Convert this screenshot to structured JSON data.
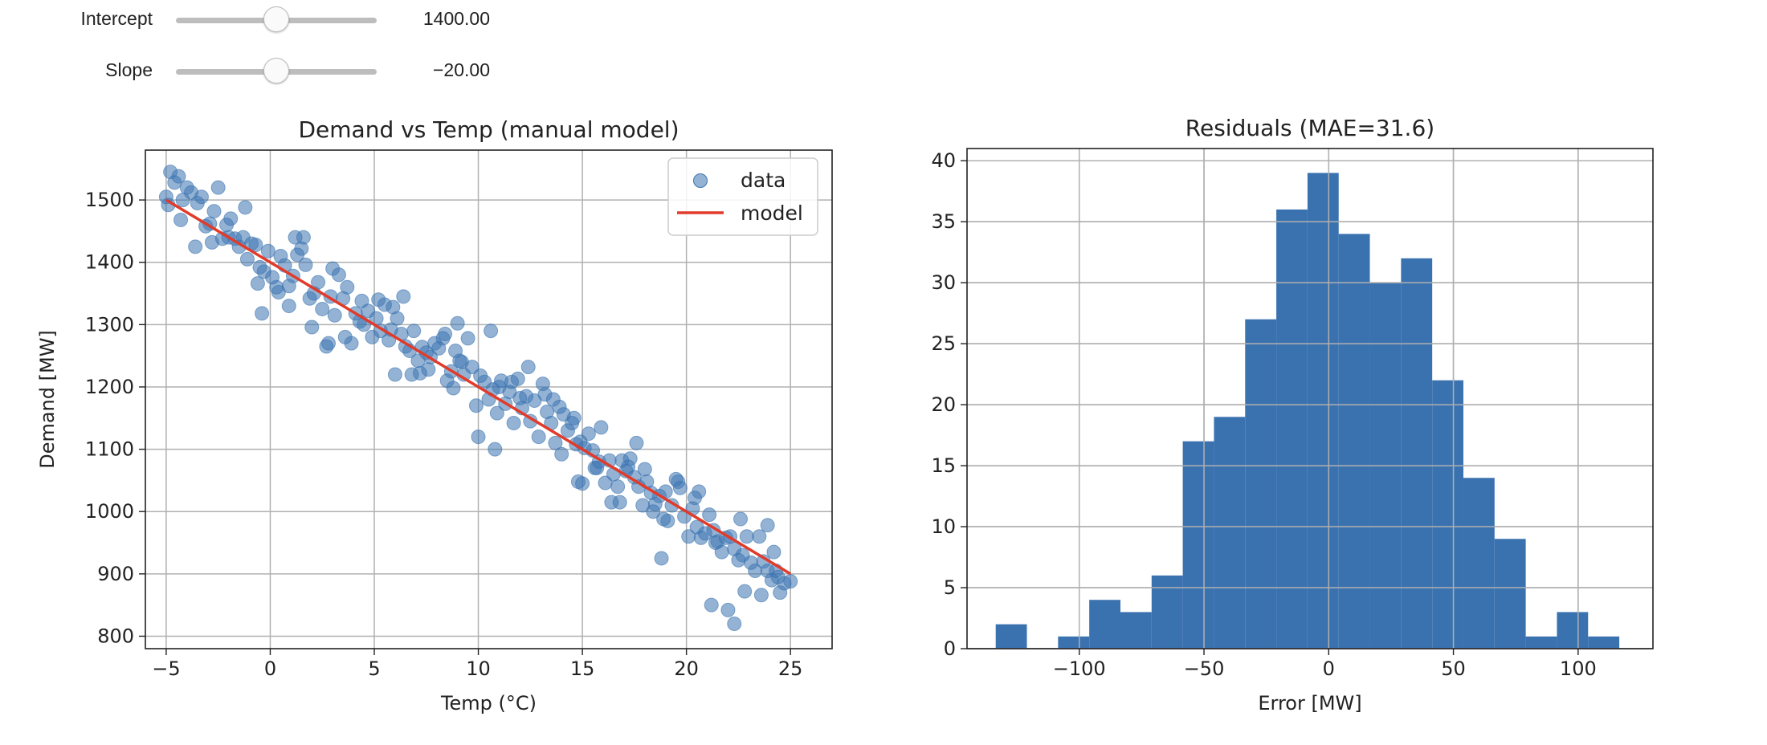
{
  "controls": {
    "intercept": {
      "label": "Intercept",
      "value_text": "1400.00",
      "value": 1400,
      "min": 1000,
      "max": 1800
    },
    "slope": {
      "label": "Slope",
      "value_text": "−20.00",
      "value": -20,
      "min": -40,
      "max": 0
    }
  },
  "colors": {
    "scatter": "#3d74b0",
    "model_line": "#e03b2b",
    "hist": "#3a72b0",
    "grid": "#b0b0b0"
  },
  "chart_data": [
    {
      "type": "scatter",
      "title": "Demand vs Temp (manual model)",
      "xlabel": "Temp (°C)",
      "ylabel": "Demand [MW]",
      "xlim": [
        -6,
        27
      ],
      "ylim": [
        780,
        1580
      ],
      "xticks": [
        -5,
        0,
        5,
        10,
        15,
        20,
        25
      ],
      "xtick_labels": [
        "−5",
        "0",
        "5",
        "10",
        "15",
        "20",
        "25"
      ],
      "yticks": [
        800,
        900,
        1000,
        1100,
        1200,
        1300,
        1400,
        1500
      ],
      "ytick_labels": [
        "800",
        "900",
        "1000",
        "1100",
        "1200",
        "1300",
        "1400",
        "1500"
      ],
      "grid": true,
      "legend": {
        "position": "top-right",
        "entries": [
          "data",
          "model"
        ]
      },
      "series": [
        {
          "name": "data",
          "kind": "scatter",
          "x": [
            -5.0,
            -4.8,
            -4.6,
            -4.4,
            -4.2,
            -4.0,
            -3.8,
            -3.5,
            -3.3,
            -3.1,
            -2.9,
            -2.7,
            -2.5,
            -2.3,
            -2.1,
            -1.9,
            -1.7,
            -1.5,
            -1.3,
            -1.1,
            -0.9,
            -0.7,
            -0.5,
            -0.3,
            -0.1,
            0.1,
            0.3,
            0.5,
            0.7,
            0.9,
            1.1,
            1.3,
            1.5,
            1.7,
            1.9,
            2.1,
            2.3,
            2.5,
            2.7,
            2.9,
            3.1,
            3.3,
            3.5,
            3.7,
            3.9,
            4.1,
            4.3,
            4.5,
            4.7,
            4.9,
            5.1,
            5.3,
            5.5,
            5.7,
            5.9,
            6.1,
            6.3,
            6.5,
            6.7,
            6.9,
            7.1,
            7.3,
            7.5,
            7.7,
            7.9,
            8.1,
            8.3,
            8.5,
            8.7,
            8.9,
            9.1,
            9.3,
            9.5,
            9.7,
            9.9,
            10.1,
            10.3,
            10.5,
            10.7,
            10.9,
            11.1,
            11.3,
            11.5,
            11.7,
            11.9,
            12.1,
            12.3,
            12.5,
            12.7,
            12.9,
            13.1,
            13.3,
            13.5,
            13.7,
            13.9,
            14.1,
            14.3,
            14.5,
            14.7,
            14.9,
            15.1,
            15.3,
            15.5,
            15.7,
            15.9,
            16.1,
            16.3,
            16.5,
            16.7,
            16.9,
            17.1,
            17.3,
            17.5,
            17.7,
            17.9,
            18.1,
            18.3,
            18.5,
            18.7,
            18.9,
            19.1,
            19.3,
            19.5,
            19.7,
            19.9,
            20.1,
            20.3,
            20.5,
            20.7,
            20.9,
            21.1,
            21.3,
            21.5,
            21.7,
            21.9,
            22.1,
            22.3,
            22.5,
            22.7,
            22.9,
            23.1,
            23.3,
            23.5,
            23.7,
            23.9,
            24.1,
            24.3,
            24.5,
            24.7,
            25.0,
            -4.9,
            -4.3,
            -3.6,
            -2.8,
            -2.0,
            -1.2,
            -0.4,
            0.4,
            1.2,
            2.0,
            2.8,
            3.6,
            4.4,
            5.2,
            6.0,
            6.8,
            7.6,
            8.4,
            9.2,
            10.0,
            10.8,
            11.6,
            12.4,
            13.2,
            14.0,
            14.8,
            15.6,
            16.4,
            17.2,
            18.0,
            18.8,
            19.6,
            20.4,
            21.2,
            22.0,
            22.8,
            23.6,
            24.4,
            -0.6,
            0.9,
            3.0,
            5.8,
            7.2,
            9.0,
            10.6,
            12.0,
            13.6,
            14.6,
            15.8,
            17.6,
            19.0,
            20.6,
            21.4,
            22.3,
            23.9,
            1.6,
            6.4,
            8.8,
            11.0,
            15.0,
            16.8,
            18.4,
            22.6,
            24.2
          ],
          "y": [
            1505,
            1545,
            1528,
            1538,
            1500,
            1520,
            1512,
            1495,
            1505,
            1458,
            1462,
            1482,
            1520,
            1438,
            1460,
            1470,
            1438,
            1425,
            1440,
            1405,
            1430,
            1428,
            1392,
            1385,
            1418,
            1376,
            1360,
            1410,
            1395,
            1362,
            1378,
            1412,
            1422,
            1396,
            1342,
            1350,
            1368,
            1325,
            1265,
            1345,
            1315,
            1380,
            1342,
            1360,
            1270,
            1318,
            1305,
            1300,
            1322,
            1280,
            1310,
            1290,
            1332,
            1275,
            1328,
            1310,
            1285,
            1265,
            1258,
            1290,
            1242,
            1264,
            1255,
            1248,
            1270,
            1262,
            1278,
            1210,
            1225,
            1258,
            1242,
            1220,
            1278,
            1232,
            1170,
            1218,
            1208,
            1180,
            1196,
            1158,
            1210,
            1173,
            1192,
            1142,
            1213,
            1166,
            1185,
            1145,
            1178,
            1120,
            1205,
            1160,
            1142,
            1110,
            1168,
            1156,
            1130,
            1142,
            1108,
            1112,
            1102,
            1125,
            1098,
            1070,
            1135,
            1046,
            1082,
            1060,
            1040,
            1082,
            1065,
            1085,
            1055,
            1040,
            1010,
            1048,
            1030,
            1012,
            1025,
            988,
            985,
            1010,
            1052,
            1038,
            992,
            960,
            1005,
            975,
            958,
            965,
            995,
            970,
            952,
            935,
            958,
            960,
            940,
            922,
            930,
            960,
            918,
            905,
            960,
            920,
            905,
            890,
            905,
            870,
            885,
            888,
            1492,
            1468,
            1425,
            1432,
            1440,
            1488,
            1318,
            1352,
            1440,
            1296,
            1270,
            1280,
            1338,
            1340,
            1220,
            1220,
            1228,
            1285,
            1240,
            1120,
            1100,
            1208,
            1232,
            1188,
            1092,
            1048,
            1070,
            1015,
            1072,
            1068,
            925,
            1048,
            1022,
            850,
            842,
            872,
            866,
            895,
            1366,
            1330,
            1390,
            1292,
            1222,
            1302,
            1290,
            1182,
            1180,
            1150,
            1080,
            1110,
            1032,
            1032,
            950,
            820,
            978,
            1440,
            1345,
            1198,
            1200,
            1045,
            1015,
            1000,
            988,
            935
          ]
        },
        {
          "name": "model",
          "kind": "line",
          "x": [
            -5,
            25
          ],
          "y": [
            1500,
            900
          ]
        }
      ]
    },
    {
      "type": "bar",
      "title": "Residuals (MAE=31.6)",
      "xlabel": "Error [MW]",
      "ylabel": "",
      "xlim": [
        -145,
        130
      ],
      "ylim": [
        0,
        41
      ],
      "xticks": [
        -100,
        -50,
        0,
        50,
        100
      ],
      "xtick_labels": [
        "−100",
        "−50",
        "0",
        "50",
        "100"
      ],
      "yticks": [
        0,
        5,
        10,
        15,
        20,
        25,
        30,
        35,
        40
      ],
      "ytick_labels": [
        "0",
        "5",
        "10",
        "15",
        "20",
        "25",
        "30",
        "35",
        "40"
      ],
      "grid": true,
      "bin_edges": [
        -133.5,
        -121.0,
        -108.5,
        -96.0,
        -83.5,
        -71.0,
        -58.5,
        -46.0,
        -33.5,
        -21.0,
        -8.5,
        4.0,
        16.5,
        29.0,
        41.5,
        54.0,
        66.5,
        79.0,
        91.5,
        104.0,
        116.5
      ],
      "values": [
        2,
        0,
        1,
        4,
        3,
        6,
        17,
        19,
        27,
        36,
        39,
        34,
        30,
        32,
        22,
        14,
        9,
        1,
        3,
        1
      ]
    }
  ]
}
